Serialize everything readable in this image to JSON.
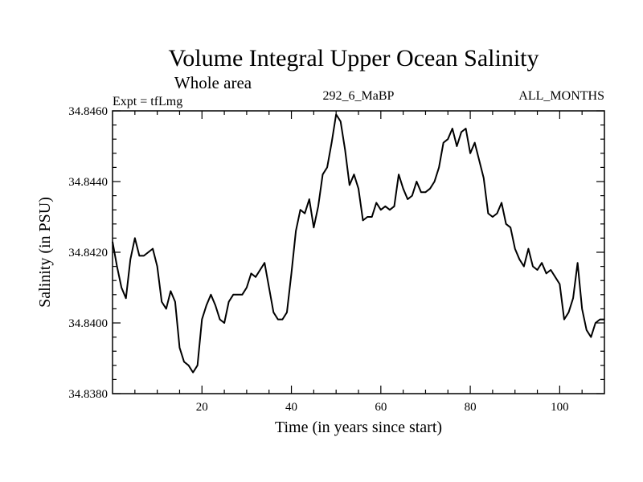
{
  "chart_data": {
    "type": "line",
    "title": "Volume Integral Upper Ocean Salinity",
    "subtitle": "Whole area",
    "left_label": "Expt = tfLmg",
    "center_label": "292_6_MaBP",
    "right_label": "ALL_MONTHS",
    "xlabel": "Time (in years since start)",
    "ylabel": "Salinity (in PSU)",
    "xlim": [
      0,
      110
    ],
    "ylim": [
      34.838,
      34.846
    ],
    "x_ticks": [
      20,
      40,
      60,
      80,
      100
    ],
    "y_ticks": [
      "34.8380",
      "34.8400",
      "34.8420",
      "34.8440",
      "34.8460"
    ],
    "series": [
      {
        "name": "Salinity",
        "x": [
          0,
          1,
          2,
          3,
          4,
          5,
          6,
          7,
          8,
          9,
          10,
          11,
          12,
          13,
          14,
          15,
          16,
          17,
          18,
          19,
          20,
          21,
          22,
          23,
          24,
          25,
          26,
          27,
          28,
          29,
          30,
          31,
          32,
          33,
          34,
          35,
          36,
          37,
          38,
          39,
          40,
          41,
          42,
          43,
          44,
          45,
          46,
          47,
          48,
          49,
          50,
          51,
          52,
          53,
          54,
          55,
          56,
          57,
          58,
          59,
          60,
          61,
          62,
          63,
          64,
          65,
          66,
          67,
          68,
          69,
          70,
          71,
          72,
          73,
          74,
          75,
          76,
          77,
          78,
          79,
          80,
          81,
          82,
          83,
          84,
          85,
          86,
          87,
          88,
          89,
          90,
          91,
          92,
          93,
          94,
          95,
          96,
          97,
          98,
          99,
          100,
          101,
          102,
          103,
          104,
          105,
          106,
          107,
          108,
          109,
          110
        ],
        "values": [
          34.8423,
          34.8416,
          34.841,
          34.8407,
          34.8418,
          34.8424,
          34.8419,
          34.8419,
          34.842,
          34.8421,
          34.8416,
          34.8406,
          34.8404,
          34.8409,
          34.8406,
          34.8393,
          34.8389,
          34.8388,
          34.8386,
          34.8388,
          34.8401,
          34.8405,
          34.8408,
          34.8405,
          34.8401,
          34.84,
          34.8406,
          34.8408,
          34.8408,
          34.8408,
          34.841,
          34.8414,
          34.8413,
          34.8415,
          34.8417,
          34.841,
          34.8403,
          34.8401,
          34.8401,
          34.8403,
          34.8414,
          34.8426,
          34.8432,
          34.8431,
          34.8435,
          34.8427,
          34.8433,
          34.8442,
          34.8444,
          34.8451,
          34.8459,
          34.8457,
          34.8449,
          34.8439,
          34.8442,
          34.8438,
          34.8429,
          34.843,
          34.843,
          34.8434,
          34.8432,
          34.8433,
          34.8432,
          34.8433,
          34.8442,
          34.8438,
          34.8435,
          34.8436,
          34.844,
          34.8437,
          34.8437,
          34.8438,
          34.844,
          34.8444,
          34.8451,
          34.8452,
          34.8455,
          34.845,
          34.8454,
          34.8455,
          34.8448,
          34.8451,
          34.8446,
          34.8441,
          34.8431,
          34.843,
          34.8431,
          34.8434,
          34.8428,
          34.8427,
          34.8421,
          34.8418,
          34.8416,
          34.8421,
          34.8416,
          34.8415,
          34.8417,
          34.8414,
          34.8415,
          34.8413,
          34.8411,
          34.8401,
          34.8403,
          34.8407,
          34.8417,
          34.8404,
          34.8398,
          34.8396,
          34.84,
          34.8401,
          34.8401
        ]
      }
    ]
  }
}
